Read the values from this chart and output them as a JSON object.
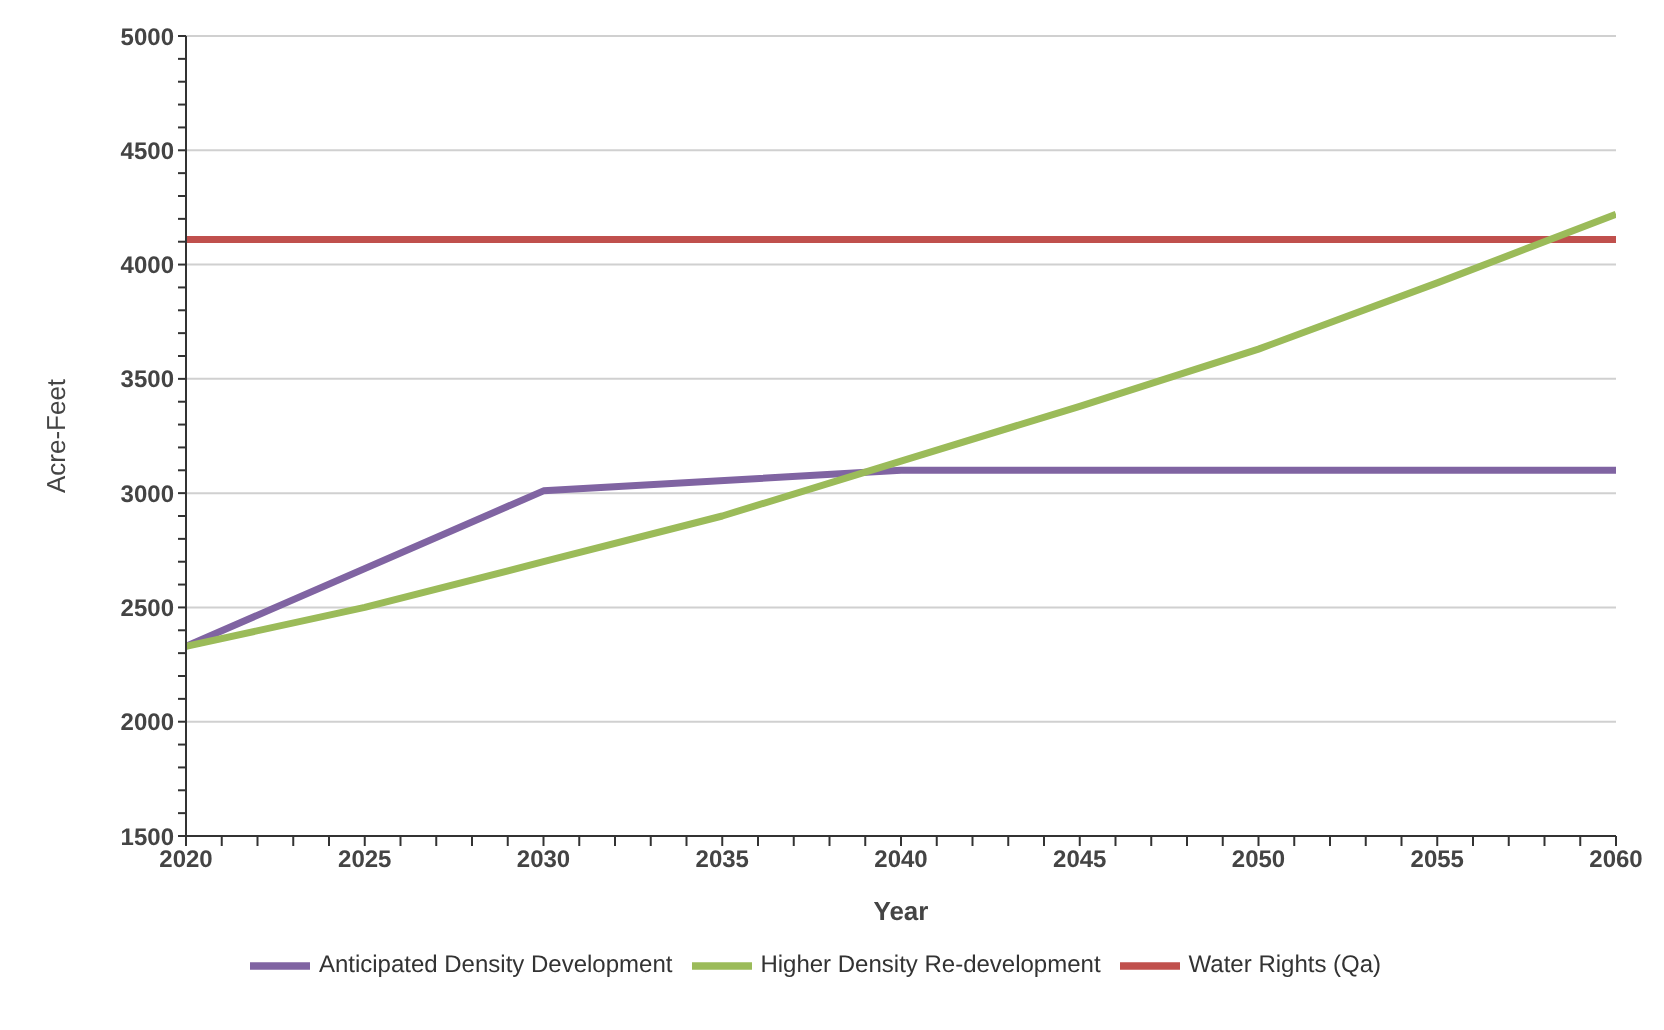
{
  "chart_data": {
    "type": "line",
    "xlabel": "Year",
    "ylabel": "Acre-Feet",
    "xlim": [
      2020,
      2060
    ],
    "ylim": [
      1500,
      5000
    ],
    "xticks": [
      2020,
      {
        "value": 2021,
        "label": null
      },
      {
        "value": 2022,
        "label": null
      },
      {
        "value": 2023,
        "label": null
      },
      {
        "value": 2024,
        "label": null
      },
      2025,
      {
        "value": 2026,
        "label": null
      },
      {
        "value": 2027,
        "label": null
      },
      {
        "value": 2028,
        "label": null
      },
      {
        "value": 2029,
        "label": null
      },
      2030,
      {
        "value": 2031,
        "label": null
      },
      {
        "value": 2032,
        "label": null
      },
      {
        "value": 2033,
        "label": null
      },
      {
        "value": 2034,
        "label": null
      },
      2035,
      {
        "value": 2036,
        "label": null
      },
      {
        "value": 2037,
        "label": null
      },
      {
        "value": 2038,
        "label": null
      },
      {
        "value": 2039,
        "label": null
      },
      2040,
      {
        "value": 2041,
        "label": null
      },
      {
        "value": 2042,
        "label": null
      },
      {
        "value": 2043,
        "label": null
      },
      {
        "value": 2044,
        "label": null
      },
      2045,
      {
        "value": 2046,
        "label": null
      },
      {
        "value": 2047,
        "label": null
      },
      {
        "value": 2048,
        "label": null
      },
      {
        "value": 2049,
        "label": null
      },
      2050,
      {
        "value": 2051,
        "label": null
      },
      {
        "value": 2052,
        "label": null
      },
      {
        "value": 2053,
        "label": null
      },
      {
        "value": 2054,
        "label": null
      },
      2055,
      {
        "value": 2056,
        "label": null
      },
      {
        "value": 2057,
        "label": null
      },
      {
        "value": 2058,
        "label": null
      },
      {
        "value": 2059,
        "label": null
      },
      2060
    ],
    "yticks": [
      1500,
      {
        "value": 1600,
        "label": null
      },
      {
        "value": 1700,
        "label": null
      },
      {
        "value": 1800,
        "label": null
      },
      {
        "value": 1900,
        "label": null
      },
      2000,
      {
        "value": 2100,
        "label": null
      },
      {
        "value": 2200,
        "label": null
      },
      {
        "value": 2300,
        "label": null
      },
      {
        "value": 2400,
        "label": null
      },
      2500,
      {
        "value": 2600,
        "label": null
      },
      {
        "value": 2700,
        "label": null
      },
      {
        "value": 2800,
        "label": null
      },
      {
        "value": 2900,
        "label": null
      },
      3000,
      {
        "value": 3100,
        "label": null
      },
      {
        "value": 3200,
        "label": null
      },
      {
        "value": 3300,
        "label": null
      },
      {
        "value": 3400,
        "label": null
      },
      3500,
      {
        "value": 3600,
        "label": null
      },
      {
        "value": 3700,
        "label": null
      },
      {
        "value": 3800,
        "label": null
      },
      {
        "value": 3900,
        "label": null
      },
      4000,
      {
        "value": 4100,
        "label": null
      },
      {
        "value": 4200,
        "label": null
      },
      {
        "value": 4300,
        "label": null
      },
      {
        "value": 4400,
        "label": null
      },
      4500,
      {
        "value": 4600,
        "label": null
      },
      {
        "value": 4700,
        "label": null
      },
      {
        "value": 4800,
        "label": null
      },
      {
        "value": 4900,
        "label": null
      },
      5000
    ],
    "grid": "y",
    "legend": "bottom",
    "marker": "none",
    "line_style": "solid",
    "series": [
      {
        "name": "Water Rights (Qa)",
        "color": "#c0504d",
        "x": [
          2020,
          2060
        ],
        "values": [
          4110,
          4110
        ]
      },
      {
        "name": "Anticipated Density Development",
        "color": "#8064a2",
        "x": [
          2020,
          2030,
          2040,
          2060
        ],
        "values": [
          2330,
          3010,
          3100,
          3100
        ]
      },
      {
        "name": "Higher Density Re-development",
        "color": "#9bbb59",
        "x": [
          2020,
          2025,
          2030,
          2035,
          2040,
          2045,
          2050,
          2055,
          2060
        ],
        "values": [
          2330,
          2500,
          2700,
          2900,
          3140,
          3380,
          3630,
          3920,
          4220
        ]
      }
    ]
  }
}
